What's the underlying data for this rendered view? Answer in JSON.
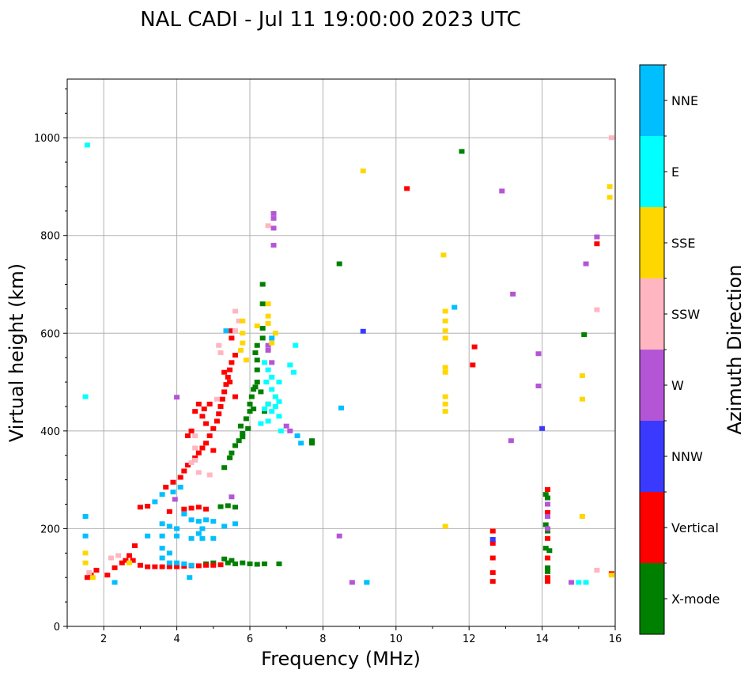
{
  "chart_data": {
    "type": "scatter",
    "title": "NAL CADI - Jul 11 19:00:00 2023 UTC",
    "xlabel": "Frequency (MHz)",
    "ylabel": "Virtual height (km)",
    "xlim": [
      1,
      16
    ],
    "ylim": [
      0,
      1120
    ],
    "xticks": [
      2,
      4,
      6,
      8,
      10,
      12,
      14,
      16
    ],
    "yticks": [
      0,
      200,
      400,
      600,
      800,
      1000
    ],
    "grid": true,
    "colorbar": {
      "label": "Azimuth Direction",
      "categories": [
        "X-mode",
        "Vertical",
        "NNW",
        "W",
        "SSW",
        "SSE",
        "E",
        "NNE"
      ],
      "colors": [
        "#008000",
        "#ff0000",
        "#3a3aff",
        "#b455d6",
        "#ffb6c1",
        "#ffd700",
        "#00ffff",
        "#00bfff"
      ]
    },
    "series": [
      {
        "name": "X-mode",
        "points": [
          [
            5.4,
            130
          ],
          [
            5.6,
            128
          ],
          [
            5.8,
            130
          ],
          [
            6.0,
            128
          ],
          [
            6.2,
            127
          ],
          [
            6.4,
            128
          ],
          [
            6.8,
            128
          ],
          [
            5.0,
            130
          ],
          [
            4.8,
            128
          ],
          [
            5.3,
            138
          ],
          [
            5.5,
            135
          ],
          [
            5.2,
            245
          ],
          [
            5.4,
            247
          ],
          [
            5.6,
            244
          ],
          [
            5.3,
            325
          ],
          [
            5.45,
            345
          ],
          [
            5.5,
            355
          ],
          [
            5.6,
            370
          ],
          [
            5.7,
            380
          ],
          [
            5.8,
            395
          ],
          [
            5.75,
            410
          ],
          [
            5.9,
            425
          ],
          [
            6.0,
            440
          ],
          [
            6.0,
            455
          ],
          [
            6.05,
            470
          ],
          [
            6.1,
            485
          ],
          [
            6.2,
            500
          ],
          [
            6.2,
            525
          ],
          [
            6.2,
            545
          ],
          [
            6.15,
            560
          ],
          [
            6.2,
            575
          ],
          [
            6.35,
            590
          ],
          [
            6.35,
            610
          ],
          [
            6.35,
            660
          ],
          [
            6.35,
            700
          ],
          [
            6.15,
            490
          ],
          [
            6.3,
            480
          ],
          [
            6.1,
            445
          ],
          [
            5.95,
            405
          ],
          [
            5.8,
            388
          ],
          [
            6.5,
            455
          ],
          [
            6.4,
            440
          ],
          [
            7.7,
            380
          ],
          [
            7.7,
            375
          ],
          [
            8.45,
            742
          ],
          [
            11.8,
            972
          ],
          [
            14.1,
            208
          ],
          [
            14.15,
            195
          ],
          [
            14.1,
            160
          ],
          [
            14.2,
            155
          ],
          [
            14.15,
            120
          ],
          [
            14.15,
            112
          ],
          [
            14.1,
            270
          ],
          [
            14.15,
            263
          ],
          [
            15.15,
            597
          ]
        ]
      },
      {
        "name": "Vertical",
        "points": [
          [
            3.2,
            122
          ],
          [
            3.4,
            122
          ],
          [
            3.6,
            122
          ],
          [
            3.8,
            122
          ],
          [
            4.0,
            122
          ],
          [
            4.2,
            123
          ],
          [
            4.4,
            124
          ],
          [
            4.6,
            124
          ],
          [
            4.8,
            125
          ],
          [
            5.0,
            125
          ],
          [
            5.2,
            126
          ],
          [
            3.0,
            125
          ],
          [
            2.8,
            135
          ],
          [
            2.7,
            145
          ],
          [
            2.85,
            165
          ],
          [
            2.3,
            120
          ],
          [
            2.1,
            105
          ],
          [
            1.55,
            100
          ],
          [
            1.65,
            105
          ],
          [
            1.8,
            115
          ],
          [
            2.5,
            130
          ],
          [
            2.6,
            135
          ],
          [
            3.0,
            244
          ],
          [
            3.2,
            246
          ],
          [
            3.8,
            235
          ],
          [
            4.2,
            240
          ],
          [
            4.4,
            242
          ],
          [
            4.6,
            244
          ],
          [
            4.8,
            240
          ],
          [
            3.7,
            285
          ],
          [
            3.9,
            295
          ],
          [
            4.1,
            305
          ],
          [
            4.2,
            318
          ],
          [
            4.3,
            330
          ],
          [
            4.5,
            345
          ],
          [
            4.6,
            355
          ],
          [
            4.7,
            365
          ],
          [
            4.8,
            375
          ],
          [
            4.9,
            390
          ],
          [
            5.0,
            405
          ],
          [
            5.1,
            420
          ],
          [
            5.15,
            435
          ],
          [
            5.2,
            450
          ],
          [
            5.25,
            465
          ],
          [
            5.3,
            480
          ],
          [
            5.35,
            495
          ],
          [
            5.4,
            510
          ],
          [
            5.45,
            525
          ],
          [
            5.5,
            540
          ],
          [
            5.6,
            555
          ],
          [
            5.5,
            590
          ],
          [
            5.5,
            605
          ],
          [
            4.5,
            440
          ],
          [
            4.6,
            455
          ],
          [
            4.7,
            430
          ],
          [
            4.8,
            415
          ],
          [
            4.4,
            400
          ],
          [
            4.3,
            390
          ],
          [
            4.75,
            445
          ],
          [
            5.3,
            520
          ],
          [
            5.45,
            500
          ],
          [
            4.9,
            455
          ],
          [
            5.6,
            470
          ],
          [
            5.0,
            360
          ],
          [
            10.3,
            896
          ],
          [
            12.15,
            572
          ],
          [
            12.1,
            535
          ],
          [
            15.5,
            783
          ],
          [
            15.9,
            108
          ],
          [
            12.65,
            195
          ],
          [
            12.65,
            170
          ],
          [
            12.65,
            140
          ],
          [
            12.65,
            110
          ],
          [
            12.65,
            92
          ],
          [
            14.15,
            280
          ],
          [
            14.15,
            233
          ],
          [
            14.15,
            180
          ],
          [
            14.15,
            140
          ],
          [
            14.15,
            100
          ],
          [
            14.15,
            92
          ]
        ]
      },
      {
        "name": "NNW",
        "points": [
          [
            12.65,
            178
          ],
          [
            14.0,
            405
          ],
          [
            9.1,
            604
          ]
        ]
      },
      {
        "name": "W",
        "points": [
          [
            4.0,
            469
          ],
          [
            6.65,
            845
          ],
          [
            6.65,
            835
          ],
          [
            6.65,
            815
          ],
          [
            6.65,
            780
          ],
          [
            6.5,
            575
          ],
          [
            6.5,
            565
          ],
          [
            6.6,
            540
          ],
          [
            7.0,
            410
          ],
          [
            7.1,
            400
          ],
          [
            3.95,
            260
          ],
          [
            5.5,
            265
          ],
          [
            8.45,
            185
          ],
          [
            8.8,
            90
          ],
          [
            12.9,
            891
          ],
          [
            13.2,
            680
          ],
          [
            13.15,
            380
          ],
          [
            13.9,
            558
          ],
          [
            13.9,
            492
          ],
          [
            14.8,
            90
          ],
          [
            15.2,
            742
          ],
          [
            15.5,
            797
          ],
          [
            14.15,
            250
          ],
          [
            14.15,
            225
          ],
          [
            14.15,
            200
          ]
        ]
      },
      {
        "name": "SSW",
        "points": [
          [
            4.5,
            365
          ],
          [
            4.5,
            340
          ],
          [
            4.4,
            335
          ],
          [
            4.6,
            315
          ],
          [
            5.1,
            465
          ],
          [
            5.2,
            560
          ],
          [
            5.15,
            575
          ],
          [
            5.6,
            605
          ],
          [
            5.6,
            645
          ],
          [
            5.7,
            625
          ],
          [
            4.9,
            310
          ],
          [
            4.5,
            390
          ],
          [
            1.6,
            110
          ],
          [
            2.2,
            140
          ],
          [
            2.4,
            145
          ],
          [
            6.5,
            820
          ],
          [
            15.5,
            648
          ],
          [
            15.5,
            115
          ],
          [
            15.9,
            1000
          ]
        ]
      },
      {
        "name": "SSE",
        "points": [
          [
            1.5,
            150
          ],
          [
            1.5,
            130
          ],
          [
            1.7,
            100
          ],
          [
            2.7,
            130
          ],
          [
            5.8,
            625
          ],
          [
            5.8,
            600
          ],
          [
            5.8,
            580
          ],
          [
            5.75,
            565
          ],
          [
            5.9,
            545
          ],
          [
            6.2,
            615
          ],
          [
            6.5,
            660
          ],
          [
            6.5,
            635
          ],
          [
            6.5,
            620
          ],
          [
            6.7,
            600
          ],
          [
            6.6,
            580
          ],
          [
            6.7,
            470
          ],
          [
            11.3,
            760
          ],
          [
            11.35,
            645
          ],
          [
            11.35,
            625
          ],
          [
            11.35,
            605
          ],
          [
            11.35,
            590
          ],
          [
            11.35,
            530
          ],
          [
            11.35,
            520
          ],
          [
            11.35,
            470
          ],
          [
            11.35,
            455
          ],
          [
            11.35,
            440
          ],
          [
            11.35,
            205
          ],
          [
            9.1,
            932
          ],
          [
            15.1,
            513
          ],
          [
            15.1,
            465
          ],
          [
            15.1,
            225
          ],
          [
            15.85,
            900
          ],
          [
            15.85,
            878
          ],
          [
            15.9,
            105
          ]
        ]
      },
      {
        "name": "E",
        "points": [
          [
            6.4,
            540
          ],
          [
            6.5,
            525
          ],
          [
            6.6,
            510
          ],
          [
            6.8,
            500
          ],
          [
            6.6,
            485
          ],
          [
            6.7,
            470
          ],
          [
            6.5,
            455
          ],
          [
            6.4,
            445
          ],
          [
            6.6,
            440
          ],
          [
            6.8,
            430
          ],
          [
            6.5,
            420
          ],
          [
            6.3,
            415
          ],
          [
            6.7,
            450
          ],
          [
            6.8,
            460
          ],
          [
            6.45,
            500
          ],
          [
            7.1,
            535
          ],
          [
            7.2,
            520
          ],
          [
            7.25,
            575
          ],
          [
            6.85,
            400
          ],
          [
            9.2,
            90
          ],
          [
            15.0,
            90
          ],
          [
            15.2,
            90
          ],
          [
            1.5,
            470
          ],
          [
            1.55,
            985
          ]
        ]
      },
      {
        "name": "NNE",
        "points": [
          [
            3.4,
            255
          ],
          [
            3.6,
            270
          ],
          [
            3.9,
            275
          ],
          [
            4.1,
            285
          ],
          [
            3.6,
            210
          ],
          [
            3.8,
            205
          ],
          [
            4.0,
            200
          ],
          [
            4.4,
            218
          ],
          [
            4.6,
            215
          ],
          [
            4.8,
            218
          ],
          [
            5.0,
            215
          ],
          [
            4.2,
            230
          ],
          [
            3.6,
            160
          ],
          [
            3.8,
            150
          ],
          [
            3.6,
            140
          ],
          [
            3.8,
            130
          ],
          [
            4.0,
            130
          ],
          [
            4.2,
            128
          ],
          [
            4.4,
            125
          ],
          [
            4.0,
            185
          ],
          [
            4.4,
            180
          ],
          [
            4.7,
            180
          ],
          [
            5.0,
            180
          ],
          [
            4.6,
            190
          ],
          [
            4.7,
            200
          ],
          [
            5.3,
            205
          ],
          [
            5.6,
            210
          ],
          [
            3.6,
            185
          ],
          [
            3.2,
            185
          ],
          [
            1.5,
            225
          ],
          [
            1.5,
            185
          ],
          [
            2.3,
            90
          ],
          [
            4.35,
            100
          ],
          [
            5.35,
            605
          ],
          [
            6.6,
            590
          ],
          [
            7.3,
            390
          ],
          [
            7.4,
            375
          ],
          [
            8.5,
            447
          ],
          [
            11.6,
            653
          ],
          [
            9.2,
            90
          ]
        ]
      }
    ]
  }
}
